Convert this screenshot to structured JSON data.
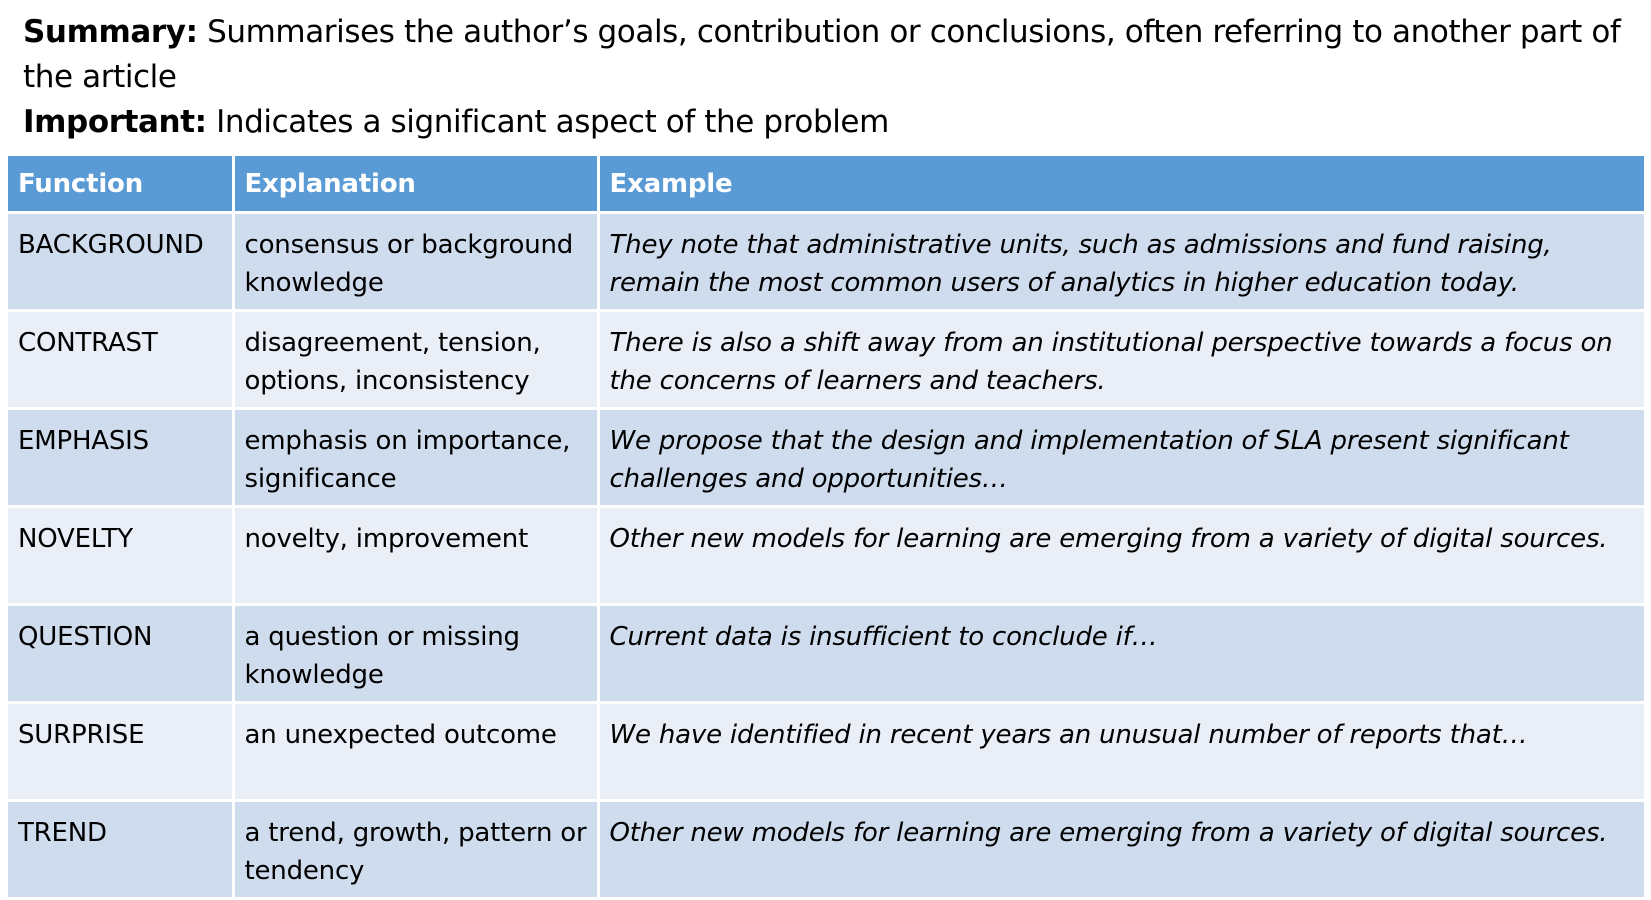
{
  "intro": {
    "summary_label": "Summary:",
    "summary_text": " Summarises the author’s goals, contribution or conclusions, often referring to another part of the article",
    "important_label": "Important:",
    "important_text": " Indicates a significant aspect of the problem"
  },
  "table": {
    "headers": [
      "Function",
      "Explanation",
      "Example"
    ],
    "rows": [
      {
        "function": "BACKGROUND",
        "explanation": "consensus or background knowledge",
        "example": "They note that administrative units, such as admissions and fund raising, remain the most common users of analytics in higher education today."
      },
      {
        "function": "CONTRAST",
        "explanation": "disagreement, tension, options, inconsistency",
        "example": "There is also a shift away from an institutional perspective towards a focus on the concerns of learners and teachers."
      },
      {
        "function": "EMPHASIS",
        "explanation": "emphasis on importance, significance",
        "example": "We propose that the design and implementation of SLA present significant challenges and opportunities…"
      },
      {
        "function": "NOVELTY",
        "explanation": "novelty, improvement",
        "example": "Other new models for learning are emerging from a variety of digital sources."
      },
      {
        "function": "QUESTION",
        "explanation": "a question or missing knowledge",
        "example": "Current data is insufficient to conclude if…"
      },
      {
        "function": "SURPRISE",
        "explanation": "an unexpected outcome",
        "example": "We have identified in recent years an unusual number of reports that…"
      },
      {
        "function": "TREND",
        "explanation": "a trend, growth, pattern or tendency",
        "example": "Other new models for learning are emerging from a variety of digital sources."
      }
    ]
  },
  "colors": {
    "header_bg": "#5b9bd5",
    "row_dark": "#cfdcee",
    "row_light": "#e9eef7"
  }
}
